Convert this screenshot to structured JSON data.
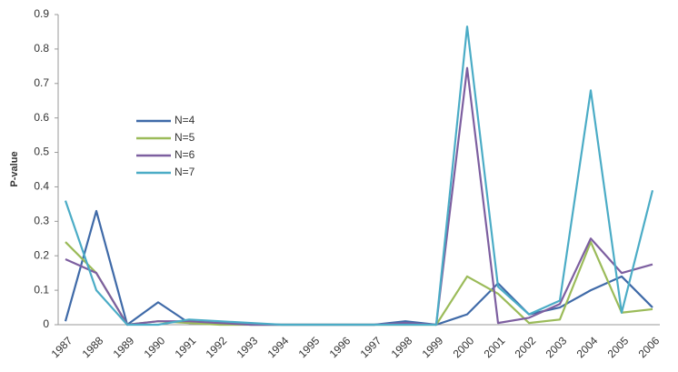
{
  "chart_data": {
    "type": "line",
    "y_label": "P-value",
    "categories": [
      "1987",
      "1988",
      "1989",
      "1990",
      "1991",
      "1992",
      "1993",
      "1994",
      "1995",
      "1996",
      "1997",
      "1998",
      "1999",
      "2000",
      "2001",
      "2002",
      "2003",
      "2004",
      "2005",
      "2006"
    ],
    "ylim": [
      0,
      0.9
    ],
    "yticks": [
      0,
      0.1,
      0.2,
      0.3,
      0.4,
      0.5,
      0.6,
      0.7,
      0.8,
      0.9
    ],
    "grid": false,
    "series": [
      {
        "name": "N=4",
        "color": "#3f6aa8",
        "values": [
          0.01,
          0.33,
          0,
          0.065,
          0.005,
          0.005,
          0,
          0,
          0,
          0,
          0,
          0.01,
          0,
          0.03,
          0.12,
          0.03,
          0.05,
          0.1,
          0.14,
          0.05
        ]
      },
      {
        "name": "N=5",
        "color": "#9bbb59",
        "values": [
          0.24,
          0.15,
          0,
          0.01,
          0.005,
          0,
          0,
          0,
          0,
          0,
          0,
          0,
          0,
          0.14,
          0.09,
          0.005,
          0.015,
          0.24,
          0.035,
          0.045
        ]
      },
      {
        "name": "N=6",
        "color": "#7d5fa0",
        "values": [
          0.19,
          0.15,
          0,
          0.01,
          0.01,
          0.005,
          0,
          0,
          0,
          0,
          0,
          0.005,
          0,
          0.745,
          0.005,
          0.02,
          0.06,
          0.25,
          0.15,
          0.175
        ]
      },
      {
        "name": "N=7",
        "color": "#4bacc6",
        "values": [
          0.36,
          0.1,
          0,
          0,
          0.015,
          0.01,
          0.005,
          0,
          0,
          0,
          0,
          0,
          0,
          0.865,
          0.11,
          0.03,
          0.07,
          0.68,
          0.035,
          0.39
        ]
      }
    ]
  }
}
